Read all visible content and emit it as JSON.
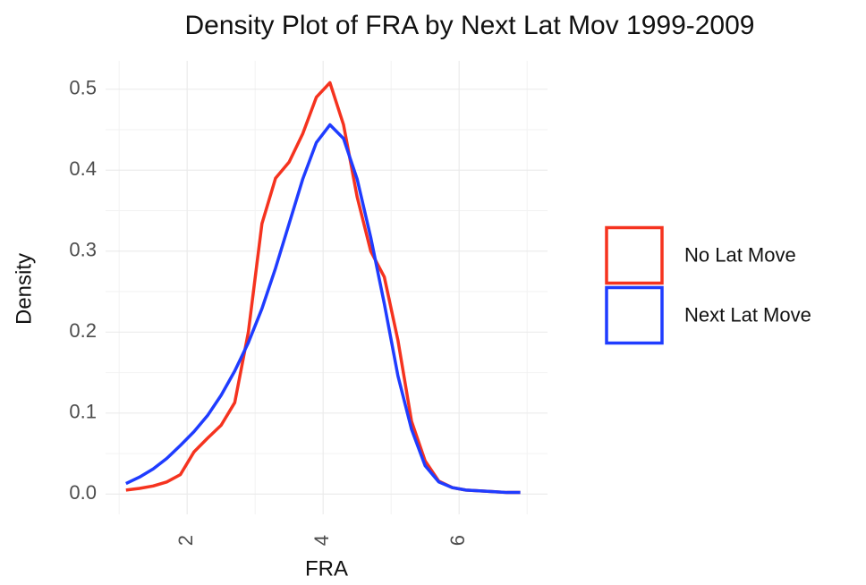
{
  "chart_data": {
    "type": "line",
    "title": "Density Plot of FRA by Next Lat Mov 1999-2009",
    "x_label": "FRA",
    "y_label": "Density",
    "x": [
      1.1,
      1.3,
      1.5,
      1.7,
      1.9,
      2.1,
      2.3,
      2.5,
      2.7,
      2.9,
      3.1,
      3.3,
      3.5,
      3.7,
      3.9,
      4.1,
      4.3,
      4.5,
      4.7,
      4.9,
      5.1,
      5.3,
      5.5,
      5.7,
      5.9,
      6.1,
      6.3,
      6.5,
      6.7,
      6.9
    ],
    "series": [
      {
        "name": "No Lat Move",
        "color": "#f5331f",
        "values": [
          0.005,
          0.007,
          0.01,
          0.015,
          0.024,
          0.052,
          0.069,
          0.085,
          0.113,
          0.2,
          0.334,
          0.39,
          0.41,
          0.445,
          0.49,
          0.508,
          0.456,
          0.367,
          0.3,
          0.268,
          0.19,
          0.09,
          0.041,
          0.016,
          0.008,
          0.005,
          0.004,
          0.003,
          0.002,
          0.002
        ]
      },
      {
        "name": "Next Lat Move",
        "color": "#1f3cff",
        "values": [
          0.013,
          0.021,
          0.031,
          0.044,
          0.06,
          0.077,
          0.097,
          0.122,
          0.152,
          0.187,
          0.229,
          0.279,
          0.334,
          0.389,
          0.434,
          0.456,
          0.439,
          0.389,
          0.317,
          0.235,
          0.146,
          0.08,
          0.035,
          0.015,
          0.008,
          0.005,
          0.004,
          0.003,
          0.002,
          0.002
        ]
      }
    ],
    "xlim": [
      0.8,
      7.3
    ],
    "xticks": [
      2,
      4,
      6
    ],
    "ylim": [
      -0.025,
      0.535
    ],
    "yticks": [
      {
        "value": 0,
        "label": "0.0"
      },
      0.1,
      0.2,
      0.3,
      0.4,
      0.5
    ],
    "grid": true,
    "legend": "right"
  }
}
